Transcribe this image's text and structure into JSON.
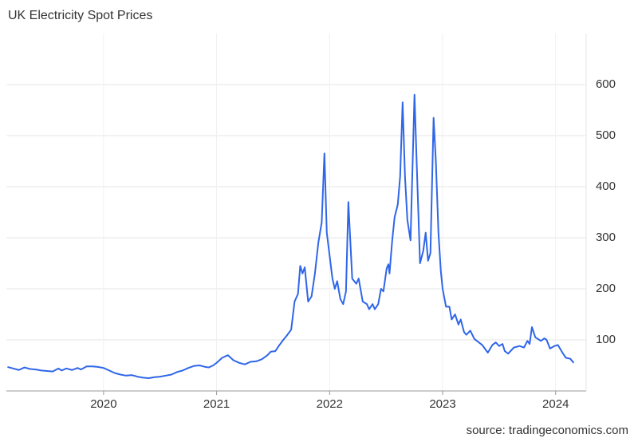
{
  "chart_data": {
    "type": "line",
    "title": "UK Electricity Spot Prices",
    "source": "source: tradingeconomics.com",
    "series": [
      {
        "name": "UK Electricity Spot Prices",
        "color": "#2f66e8",
        "x": [
          2019.15,
          2019.2,
          2019.25,
          2019.3,
          2019.35,
          2019.4,
          2019.45,
          2019.5,
          2019.55,
          2019.6,
          2019.63,
          2019.67,
          2019.72,
          2019.77,
          2019.8,
          2019.85,
          2019.9,
          2019.95,
          2020.0,
          2020.05,
          2020.1,
          2020.15,
          2020.2,
          2020.25,
          2020.3,
          2020.35,
          2020.4,
          2020.45,
          2020.5,
          2020.55,
          2020.6,
          2020.65,
          2020.7,
          2020.75,
          2020.8,
          2020.85,
          2020.9,
          2020.93,
          2020.97,
          2021.0,
          2021.05,
          2021.1,
          2021.15,
          2021.2,
          2021.25,
          2021.3,
          2021.35,
          2021.4,
          2021.45,
          2021.48,
          2021.52,
          2021.55,
          2021.59,
          2021.62,
          2021.66,
          2021.69,
          2021.72,
          2021.74,
          2021.76,
          2021.78,
          2021.81,
          2021.84,
          2021.87,
          2021.9,
          2021.93,
          2021.954,
          2021.975,
          2022.0,
          2022.025,
          2022.046,
          2022.067,
          2022.095,
          2022.12,
          2022.145,
          2022.166,
          2022.2,
          2022.236,
          2022.257,
          2022.293,
          2022.33,
          2022.35,
          2022.38,
          2022.4,
          2022.43,
          2022.455,
          2022.476,
          2022.505,
          2022.52,
          2022.53,
          2022.554,
          2022.575,
          2022.603,
          2022.624,
          2022.646,
          2022.667,
          2022.688,
          2022.716,
          2022.751,
          2022.77,
          2022.8,
          2022.829,
          2022.85,
          2022.871,
          2022.892,
          2022.92,
          2022.94,
          2022.963,
          2022.984,
          2023.0,
          2023.03,
          2023.06,
          2023.08,
          2023.11,
          2023.14,
          2023.16,
          2023.19,
          2023.21,
          2023.245,
          2023.28,
          2023.35,
          2023.4,
          2023.44,
          2023.47,
          2023.5,
          2023.53,
          2023.55,
          2023.58,
          2023.63,
          2023.68,
          2023.72,
          2023.75,
          2023.77,
          2023.79,
          2023.82,
          2023.87,
          2023.9,
          2023.92,
          2023.95,
          2023.99,
          2024.02,
          2024.06,
          2024.09,
          2024.13,
          2024.16
        ],
        "values": [
          47,
          44,
          41,
          46,
          43,
          42,
          40,
          39,
          38,
          44,
          40,
          44,
          41,
          45,
          42,
          48,
          48,
          47,
          45,
          40,
          35,
          32,
          30,
          31,
          28,
          26,
          25,
          27,
          28,
          30,
          32,
          37,
          40,
          45,
          49,
          50,
          47,
          46,
          50,
          55,
          65,
          70,
          60,
          55,
          52,
          57,
          58,
          62,
          70,
          77,
          78,
          88,
          100,
          108,
          120,
          175,
          190,
          245,
          230,
          242,
          175,
          185,
          230,
          290,
          330,
          465,
          310,
          265,
          220,
          200,
          215,
          180,
          170,
          195,
          370,
          220,
          210,
          220,
          175,
          170,
          160,
          170,
          160,
          170,
          200,
          195,
          240,
          248,
          230,
          295,
          340,
          365,
          420,
          565,
          420,
          335,
          295,
          580,
          450,
          250,
          275,
          310,
          255,
          270,
          535,
          450,
          310,
          235,
          200,
          165,
          165,
          140,
          150,
          130,
          140,
          115,
          110,
          118,
          102,
          90,
          75,
          90,
          95,
          88,
          92,
          78,
          73,
          85,
          88,
          85,
          98,
          92,
          125,
          105,
          98,
          103,
          100,
          83,
          88,
          90,
          75,
          65,
          63,
          55
        ]
      }
    ],
    "xlim": [
      2019.14,
      2024.27
    ],
    "xticks": [
      2020,
      2021,
      2022,
      2023,
      2024
    ],
    "ylim": [
      0,
      700
    ],
    "yticks": [
      100,
      200,
      300,
      400,
      500,
      600
    ],
    "grid": true
  }
}
